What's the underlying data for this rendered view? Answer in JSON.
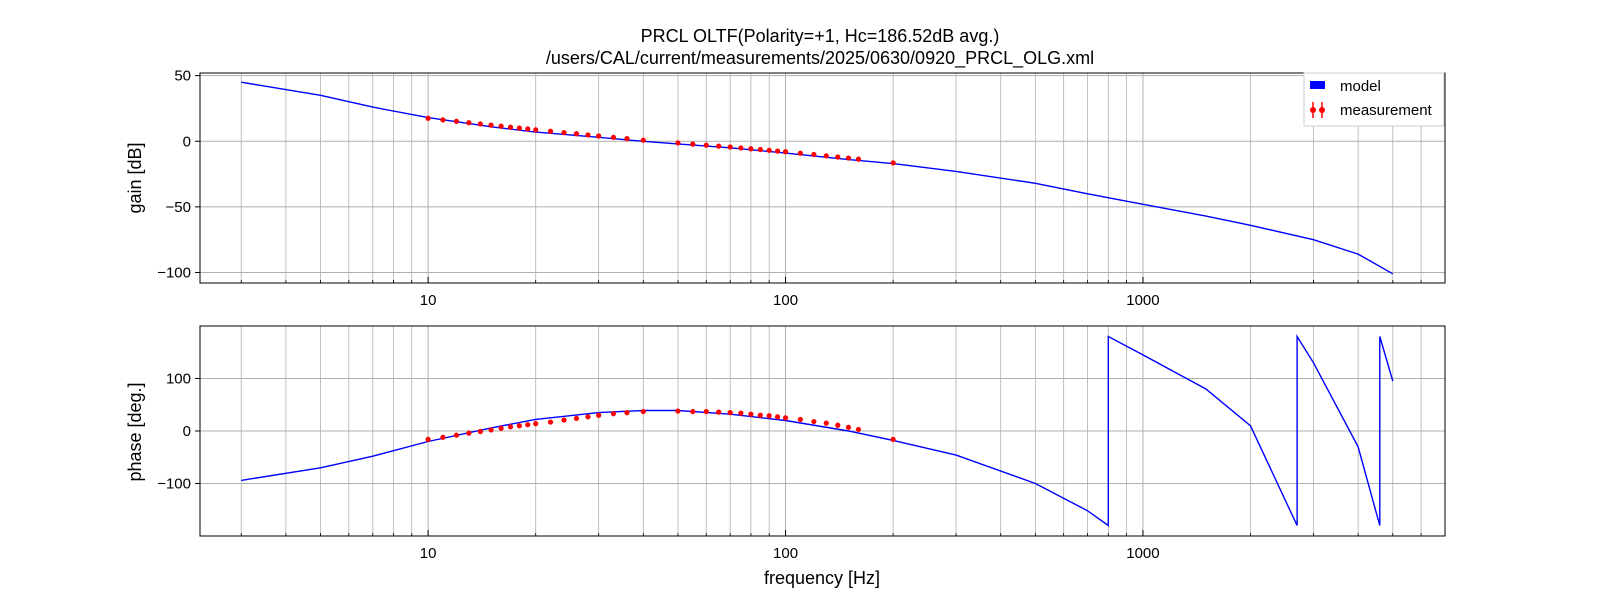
{
  "chart_data": {
    "type": "line",
    "title": "PRCL OLTF(Polarity=+1,  Hc=186.52dB avg.)",
    "subtitle": "/users/CAL/current/measurements/2025/0630/0920_PRCL_OLG.xml",
    "xlabel": "frequency [Hz]",
    "xscale": "log",
    "xlim": [
      2.3,
      7000
    ],
    "x_tick_labels": [
      "10",
      "100",
      "1000"
    ],
    "grid": true,
    "legend": {
      "placement": "top-right",
      "entries": [
        "model",
        "measurement"
      ]
    },
    "colors": {
      "model": "#0000ff",
      "measurement": "#ff0000",
      "grid": "#b0b0b0"
    },
    "panels": [
      {
        "name": "gain",
        "ylabel": "gain [dB]",
        "ylim": [
          -108,
          52
        ],
        "y_ticks": [
          50,
          0,
          -50,
          -100
        ],
        "y_tick_labels": [
          "50",
          "0",
          "−50",
          "−100"
        ],
        "model": {
          "name": "model",
          "x": [
            3,
            5,
            7,
            10,
            15,
            20,
            30,
            40,
            50,
            70,
            100,
            150,
            200,
            300,
            500,
            700,
            1000,
            1500,
            2000,
            3000,
            4000,
            5000
          ],
          "y": [
            45,
            35,
            26,
            18,
            11,
            7,
            3,
            0,
            -2,
            -5,
            -9,
            -14,
            -17,
            -23,
            -32,
            -40,
            -48,
            -57,
            -64,
            -75,
            -86,
            -101
          ]
        },
        "measurement": {
          "name": "measurement",
          "x": [
            10,
            11,
            12,
            13,
            14,
            15,
            16,
            17,
            18,
            19,
            20,
            22,
            24,
            26,
            28,
            30,
            33,
            36,
            40,
            50,
            55,
            60,
            65,
            70,
            75,
            80,
            85,
            90,
            95,
            100,
            110,
            120,
            130,
            140,
            150,
            160,
            200
          ],
          "y": [
            17.5,
            16.3,
            15.2,
            14.1,
            13.2,
            12.3,
            11.5,
            10.7,
            10.0,
            9.4,
            8.7,
            7.6,
            6.6,
            5.7,
            4.8,
            4.0,
            3.0,
            2.0,
            0.8,
            -1.3,
            -2.2,
            -3.0,
            -3.7,
            -4.4,
            -5.1,
            -5.7,
            -6.3,
            -6.9,
            -7.5,
            -8.0,
            -9.1,
            -10.1,
            -11.1,
            -12.0,
            -12.8,
            -13.6,
            -16.5
          ]
        }
      },
      {
        "name": "phase",
        "ylabel": "phase [deg.]",
        "ylim": [
          -200,
          200
        ],
        "y_ticks": [
          100,
          0,
          -100
        ],
        "y_tick_labels": [
          "100",
          "0",
          "−100"
        ],
        "model": {
          "name": "model",
          "x": [
            3,
            5,
            7,
            10,
            15,
            20,
            30,
            40,
            50,
            70,
            100,
            150,
            200,
            300,
            500,
            700,
            800,
            800,
            1000,
            1500,
            2000,
            2700,
            2700,
            3000,
            4000,
            4600,
            4600,
            5000
          ],
          "y": [
            -94,
            -70,
            -48,
            -20,
            6,
            22,
            35,
            39,
            39,
            32,
            20,
            0,
            -18,
            -46,
            -100,
            -152,
            -180,
            180,
            145,
            80,
            10,
            -180,
            180,
            130,
            -30,
            -180,
            180,
            95
          ]
        },
        "measurement": {
          "name": "measurement",
          "x": [
            10,
            11,
            12,
            13,
            14,
            15,
            16,
            17,
            18,
            19,
            20,
            22,
            24,
            26,
            28,
            30,
            33,
            36,
            40,
            50,
            55,
            60,
            65,
            70,
            75,
            80,
            85,
            90,
            95,
            100,
            110,
            120,
            130,
            140,
            150,
            160,
            200
          ],
          "y": [
            -16,
            -12,
            -8,
            -4,
            -1,
            2,
            5,
            8,
            10,
            12,
            14,
            17,
            21,
            24,
            27,
            30,
            33,
            35,
            37,
            38,
            37,
            37,
            36,
            35,
            34,
            32,
            30,
            29,
            27,
            25,
            22,
            18,
            15,
            11,
            7,
            3,
            -16
          ]
        }
      }
    ]
  }
}
